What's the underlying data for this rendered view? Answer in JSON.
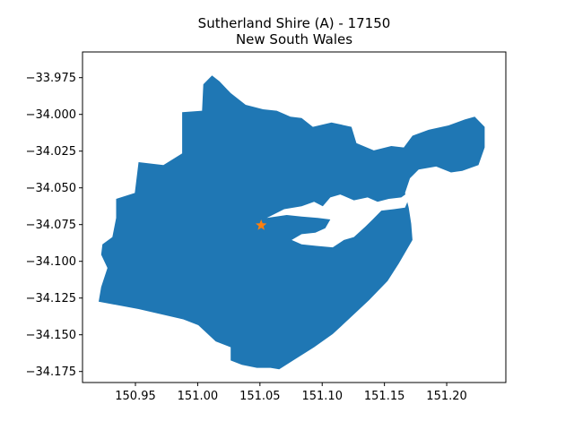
{
  "figure": {
    "title_line1": "Sutherland Shire (A) - 17150",
    "title_line2": "New South Wales"
  },
  "chart_data": {
    "type": "map",
    "title": "Sutherland Shire (A) - 17150",
    "subtitle": "New South Wales",
    "xlim": [
      150.9075,
      151.2475
    ],
    "ylim": [
      -34.1825,
      -33.9575
    ],
    "x_ticks": [
      150.95,
      151.0,
      151.05,
      151.1,
      151.15,
      151.2
    ],
    "x_tick_labels": [
      "150.95",
      "151.00",
      "151.05",
      "151.10",
      "151.15",
      "151.20"
    ],
    "y_ticks": [
      -33.975,
      -34.0,
      -34.025,
      -34.05,
      -34.075,
      -34.1,
      -34.125,
      -34.15,
      -34.175
    ],
    "y_tick_labels": [
      "−33.975",
      "−34.000",
      "−34.025",
      "−34.050",
      "−34.075",
      "−34.100",
      "−34.125",
      "−34.150",
      "−34.175"
    ],
    "region_color": "#1f77b4",
    "marker": {
      "lon": 151.051,
      "lat": -34.0755,
      "symbol": "star",
      "color": "#ff7f0e"
    },
    "outline": [
      [
        150.9345,
        -34.0575
      ],
      [
        150.9495,
        -34.0535
      ],
      [
        150.9525,
        -34.0325
      ],
      [
        150.9725,
        -34.0345
      ],
      [
        150.9875,
        -34.0265
      ],
      [
        150.9875,
        -33.9985
      ],
      [
        151.0035,
        -33.9975
      ],
      [
        151.0045,
        -33.9795
      ],
      [
        151.0115,
        -33.9735
      ],
      [
        151.0175,
        -33.9775
      ],
      [
        151.0265,
        -33.9855
      ],
      [
        151.0385,
        -33.9935
      ],
      [
        151.0525,
        -33.9965
      ],
      [
        151.0635,
        -33.9975
      ],
      [
        151.0745,
        -34.0015
      ],
      [
        151.0835,
        -34.0025
      ],
      [
        151.0925,
        -34.0085
      ],
      [
        151.1075,
        -34.0055
      ],
      [
        151.1235,
        -34.0085
      ],
      [
        151.1275,
        -34.0195
      ],
      [
        151.1415,
        -34.0245
      ],
      [
        151.1555,
        -34.0215
      ],
      [
        151.1655,
        -34.0225
      ],
      [
        151.1725,
        -34.0145
      ],
      [
        151.1855,
        -34.0105
      ],
      [
        151.2015,
        -34.0075
      ],
      [
        151.2145,
        -34.0035
      ],
      [
        151.2225,
        -34.0015
      ],
      [
        151.2305,
        -34.0085
      ],
      [
        151.2305,
        -34.0225
      ],
      [
        151.2255,
        -34.0345
      ],
      [
        151.2125,
        -34.0385
      ],
      [
        151.2035,
        -34.0395
      ],
      [
        151.1915,
        -34.0355
      ],
      [
        151.1775,
        -34.0375
      ],
      [
        151.1705,
        -34.0435
      ],
      [
        151.1665,
        -34.0535
      ],
      [
        151.1695,
        -34.0635
      ],
      [
        151.1715,
        -34.0745
      ],
      [
        151.1725,
        -34.0855
      ],
      [
        151.1615,
        -34.1015
      ],
      [
        151.1525,
        -34.1135
      ],
      [
        151.1375,
        -34.1265
      ],
      [
        151.1225,
        -34.1385
      ],
      [
        151.1085,
        -34.1495
      ],
      [
        151.0935,
        -34.1585
      ],
      [
        151.0785,
        -34.1665
      ],
      [
        151.0655,
        -34.1735
      ],
      [
        151.0585,
        -34.1725
      ],
      [
        151.0475,
        -34.1725
      ],
      [
        151.0355,
        -34.1705
      ],
      [
        151.0265,
        -34.1675
      ],
      [
        151.0265,
        -34.1585
      ],
      [
        151.0145,
        -34.1545
      ],
      [
        151.0005,
        -34.1435
      ],
      [
        150.9885,
        -34.1395
      ],
      [
        150.9525,
        -34.1325
      ],
      [
        150.9205,
        -34.1275
      ],
      [
        150.9225,
        -34.1175
      ],
      [
        150.9275,
        -34.1045
      ],
      [
        150.9225,
        -34.0955
      ],
      [
        150.9235,
        -34.0885
      ],
      [
        150.9315,
        -34.0835
      ],
      [
        150.9345,
        -34.0705
      ]
    ],
    "river": [
      [
        151.0555,
        -34.0705
      ],
      [
        151.0695,
        -34.0645
      ],
      [
        151.0835,
        -34.0625
      ],
      [
        151.0935,
        -34.0595
      ],
      [
        151.1005,
        -34.0625
      ],
      [
        151.1065,
        -34.0565
      ],
      [
        151.1145,
        -34.0545
      ],
      [
        151.1255,
        -34.0585
      ],
      [
        151.1365,
        -34.0565
      ],
      [
        151.1445,
        -34.0595
      ],
      [
        151.1535,
        -34.0575
      ],
      [
        151.1635,
        -34.0565
      ],
      [
        151.1685,
        -34.0535
      ],
      [
        151.1715,
        -34.0535
      ],
      [
        151.1665,
        -34.0635
      ],
      [
        151.1575,
        -34.0645
      ],
      [
        151.1475,
        -34.0655
      ],
      [
        151.1405,
        -34.0715
      ],
      [
        151.1345,
        -34.0765
      ],
      [
        151.1255,
        -34.0835
      ],
      [
        151.1175,
        -34.0855
      ],
      [
        151.1085,
        -34.0905
      ],
      [
        151.0955,
        -34.0895
      ],
      [
        151.0835,
        -34.0885
      ],
      [
        151.0755,
        -34.0855
      ],
      [
        151.0835,
        -34.0815
      ],
      [
        151.0945,
        -34.0805
      ],
      [
        151.1025,
        -34.0775
      ],
      [
        151.1065,
        -34.0715
      ],
      [
        151.0965,
        -34.0705
      ],
      [
        151.0835,
        -34.0695
      ],
      [
        151.0715,
        -34.0685
      ]
    ]
  }
}
